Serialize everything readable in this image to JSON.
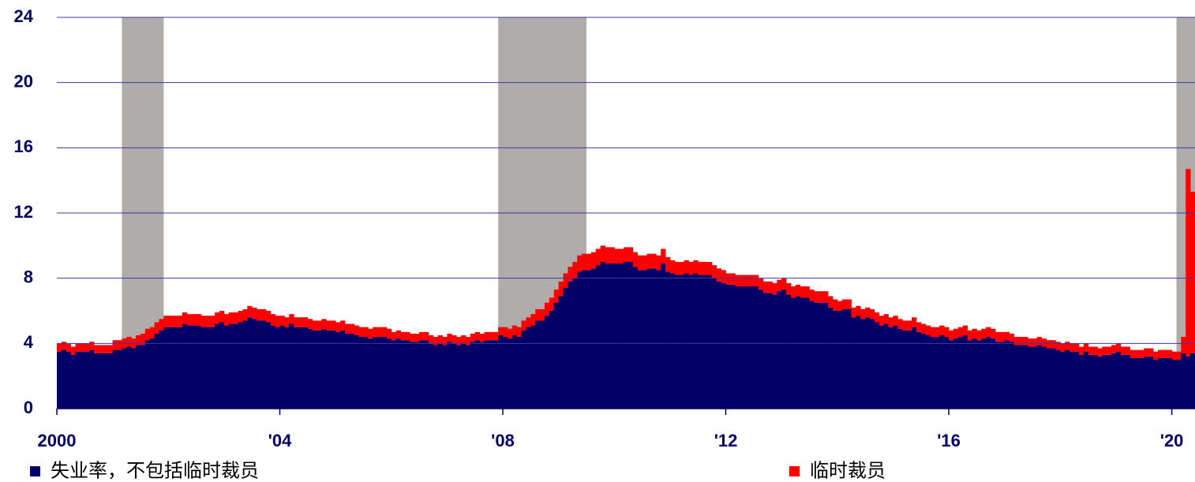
{
  "chart_data": {
    "type": "stacked_bar",
    "categories": [
      "2000",
      null,
      null,
      null,
      null,
      null,
      null,
      null,
      null,
      null,
      null,
      null,
      null,
      null,
      null,
      null,
      null,
      null,
      null,
      null,
      null,
      null,
      null,
      null,
      null,
      null,
      null,
      null,
      null,
      null,
      null,
      null,
      null,
      null,
      null,
      null,
      null,
      null,
      null,
      null,
      null,
      null,
      null,
      null,
      null,
      null,
      null,
      null,
      "'04",
      null,
      null,
      null,
      null,
      null,
      null,
      null,
      null,
      null,
      null,
      null,
      null,
      null,
      null,
      null,
      null,
      null,
      null,
      null,
      null,
      null,
      null,
      null,
      null,
      null,
      null,
      null,
      null,
      null,
      null,
      null,
      null,
      null,
      null,
      null,
      null,
      null,
      null,
      null,
      null,
      null,
      null,
      null,
      null,
      null,
      null,
      null,
      "'08",
      null,
      null,
      null,
      null,
      null,
      null,
      null,
      null,
      null,
      null,
      null,
      null,
      null,
      null,
      null,
      null,
      null,
      null,
      null,
      null,
      null,
      null,
      null,
      null,
      null,
      null,
      null,
      null,
      null,
      null,
      null,
      null,
      null,
      null,
      null,
      null,
      null,
      null,
      null,
      null,
      null,
      null,
      null,
      null,
      null,
      null,
      null,
      "'12",
      null,
      null,
      null,
      null,
      null,
      null,
      null,
      null,
      null,
      null,
      null,
      null,
      null,
      null,
      null,
      null,
      null,
      null,
      null,
      null,
      null,
      null,
      null,
      null,
      null,
      null,
      null,
      null,
      null,
      null,
      null,
      null,
      null,
      null,
      null,
      null,
      null,
      null,
      null,
      null,
      null,
      null,
      null,
      null,
      null,
      null,
      null,
      "'16",
      null,
      null,
      null,
      null,
      null,
      null,
      null,
      null,
      null,
      null,
      null,
      null,
      null,
      null,
      null,
      null,
      null,
      null,
      null,
      null,
      null,
      null,
      null,
      null,
      null,
      null,
      null,
      null,
      null,
      null,
      null,
      null,
      null,
      null,
      null,
      null,
      null,
      null,
      null,
      null,
      null,
      null,
      null,
      null,
      null,
      null,
      null,
      "'20",
      null,
      null,
      null,
      null
    ],
    "series": [
      {
        "name": "失业率，不包括临时裁员",
        "color": "#000066",
        "values": [
          3.5,
          3.6,
          3.5,
          3.3,
          3.5,
          3.5,
          3.5,
          3.6,
          3.4,
          3.4,
          3.4,
          3.4,
          3.6,
          3.6,
          3.7,
          3.8,
          3.7,
          3.9,
          3.9,
          4.2,
          4.3,
          4.6,
          4.8,
          5.0,
          5.0,
          5.0,
          5.0,
          5.2,
          5.1,
          5.1,
          5.1,
          5.0,
          5.0,
          5.0,
          5.2,
          5.3,
          5.1,
          5.2,
          5.2,
          5.3,
          5.4,
          5.6,
          5.5,
          5.4,
          5.4,
          5.3,
          5.1,
          5.0,
          5.1,
          5.0,
          5.2,
          5.0,
          5.0,
          5.0,
          4.9,
          4.8,
          4.8,
          4.9,
          4.8,
          4.8,
          4.7,
          4.8,
          4.6,
          4.6,
          4.5,
          4.4,
          4.4,
          4.3,
          4.4,
          4.4,
          4.4,
          4.3,
          4.2,
          4.3,
          4.2,
          4.2,
          4.1,
          4.1,
          4.2,
          4.2,
          4.0,
          3.9,
          4.0,
          3.9,
          4.1,
          4.0,
          3.9,
          4.0,
          3.9,
          4.1,
          4.2,
          4.1,
          4.2,
          4.2,
          4.2,
          4.5,
          4.4,
          4.3,
          4.5,
          4.4,
          4.8,
          5.0,
          5.1,
          5.4,
          5.4,
          5.7,
          6.0,
          6.5,
          6.9,
          7.4,
          7.8,
          8.0,
          8.4,
          8.5,
          8.5,
          8.6,
          8.8,
          9.0,
          8.9,
          8.9,
          8.9,
          8.9,
          9.0,
          9.0,
          8.7,
          8.5,
          8.5,
          8.6,
          8.6,
          8.5,
          8.9,
          8.4,
          8.3,
          8.2,
          8.2,
          8.3,
          8.2,
          8.3,
          8.2,
          8.2,
          8.2,
          8.0,
          7.8,
          7.7,
          7.6,
          7.6,
          7.5,
          7.5,
          7.5,
          7.5,
          7.5,
          7.3,
          7.1,
          7.1,
          7.0,
          7.2,
          7.3,
          7.0,
          6.8,
          6.9,
          6.8,
          6.8,
          6.6,
          6.5,
          6.5,
          6.5,
          6.2,
          6.0,
          6.0,
          6.1,
          6.1,
          5.6,
          5.7,
          5.5,
          5.6,
          5.5,
          5.3,
          5.1,
          5.2,
          5.0,
          5.1,
          4.9,
          4.8,
          4.8,
          5.0,
          4.7,
          4.6,
          4.5,
          4.4,
          4.4,
          4.5,
          4.4,
          4.2,
          4.3,
          4.4,
          4.5,
          4.2,
          4.3,
          4.2,
          4.3,
          4.4,
          4.3,
          4.1,
          4.1,
          4.2,
          4.1,
          3.9,
          3.9,
          3.9,
          3.8,
          3.8,
          3.9,
          3.8,
          3.7,
          3.7,
          3.6,
          3.5,
          3.6,
          3.5,
          3.5,
          3.3,
          3.5,
          3.3,
          3.3,
          3.2,
          3.3,
          3.3,
          3.4,
          3.5,
          3.3,
          3.3,
          3.1,
          3.1,
          3.1,
          3.2,
          3.2,
          3.0,
          3.1,
          3.1,
          3.1,
          3.0,
          3.0,
          3.4,
          3.2,
          3.4
        ]
      },
      {
        "name": "临时裁员",
        "color": "#ff0000",
        "values": [
          0.5,
          0.5,
          0.5,
          0.5,
          0.5,
          0.5,
          0.5,
          0.5,
          0.5,
          0.5,
          0.5,
          0.5,
          0.6,
          0.6,
          0.6,
          0.6,
          0.6,
          0.6,
          0.7,
          0.7,
          0.7,
          0.7,
          0.7,
          0.7,
          0.7,
          0.7,
          0.7,
          0.7,
          0.7,
          0.7,
          0.7,
          0.7,
          0.7,
          0.7,
          0.7,
          0.7,
          0.7,
          0.7,
          0.7,
          0.7,
          0.7,
          0.7,
          0.7,
          0.7,
          0.7,
          0.7,
          0.7,
          0.7,
          0.6,
          0.6,
          0.6,
          0.6,
          0.6,
          0.6,
          0.6,
          0.6,
          0.6,
          0.6,
          0.6,
          0.6,
          0.6,
          0.6,
          0.6,
          0.6,
          0.6,
          0.6,
          0.6,
          0.6,
          0.6,
          0.6,
          0.6,
          0.6,
          0.5,
          0.5,
          0.5,
          0.5,
          0.5,
          0.5,
          0.5,
          0.5,
          0.5,
          0.5,
          0.5,
          0.5,
          0.5,
          0.5,
          0.5,
          0.5,
          0.5,
          0.5,
          0.5,
          0.5,
          0.5,
          0.5,
          0.5,
          0.5,
          0.6,
          0.6,
          0.6,
          0.6,
          0.6,
          0.6,
          0.7,
          0.7,
          0.7,
          0.8,
          0.8,
          0.8,
          0.9,
          0.9,
          0.9,
          1.0,
          1.0,
          1.0,
          1.0,
          1.0,
          1.0,
          1.0,
          1.0,
          1.0,
          0.9,
          0.9,
          0.9,
          0.9,
          0.9,
          0.9,
          0.9,
          0.9,
          0.9,
          0.9,
          0.9,
          0.9,
          0.8,
          0.8,
          0.8,
          0.8,
          0.8,
          0.8,
          0.8,
          0.8,
          0.8,
          0.8,
          0.8,
          0.8,
          0.7,
          0.7,
          0.7,
          0.7,
          0.7,
          0.7,
          0.7,
          0.7,
          0.7,
          0.7,
          0.7,
          0.7,
          0.7,
          0.7,
          0.7,
          0.7,
          0.7,
          0.7,
          0.7,
          0.7,
          0.7,
          0.7,
          0.7,
          0.7,
          0.6,
          0.6,
          0.6,
          0.6,
          0.6,
          0.6,
          0.6,
          0.6,
          0.6,
          0.6,
          0.6,
          0.6,
          0.6,
          0.6,
          0.6,
          0.6,
          0.6,
          0.6,
          0.6,
          0.6,
          0.6,
          0.6,
          0.6,
          0.6,
          0.6,
          0.6,
          0.6,
          0.6,
          0.6,
          0.6,
          0.6,
          0.6,
          0.6,
          0.6,
          0.6,
          0.6,
          0.5,
          0.5,
          0.5,
          0.5,
          0.5,
          0.5,
          0.5,
          0.5,
          0.5,
          0.5,
          0.5,
          0.5,
          0.5,
          0.5,
          0.5,
          0.5,
          0.5,
          0.5,
          0.5,
          0.5,
          0.5,
          0.5,
          0.5,
          0.5,
          0.5,
          0.5,
          0.5,
          0.5,
          0.5,
          0.5,
          0.5,
          0.5,
          0.5,
          0.5,
          0.5,
          0.5,
          0.5,
          0.5,
          1.0,
          11.5,
          9.9
        ]
      }
    ],
    "ylim": [
      0,
      24
    ],
    "yticks": [
      0,
      4,
      8,
      12,
      16,
      20,
      24
    ],
    "grid": true
  }
}
